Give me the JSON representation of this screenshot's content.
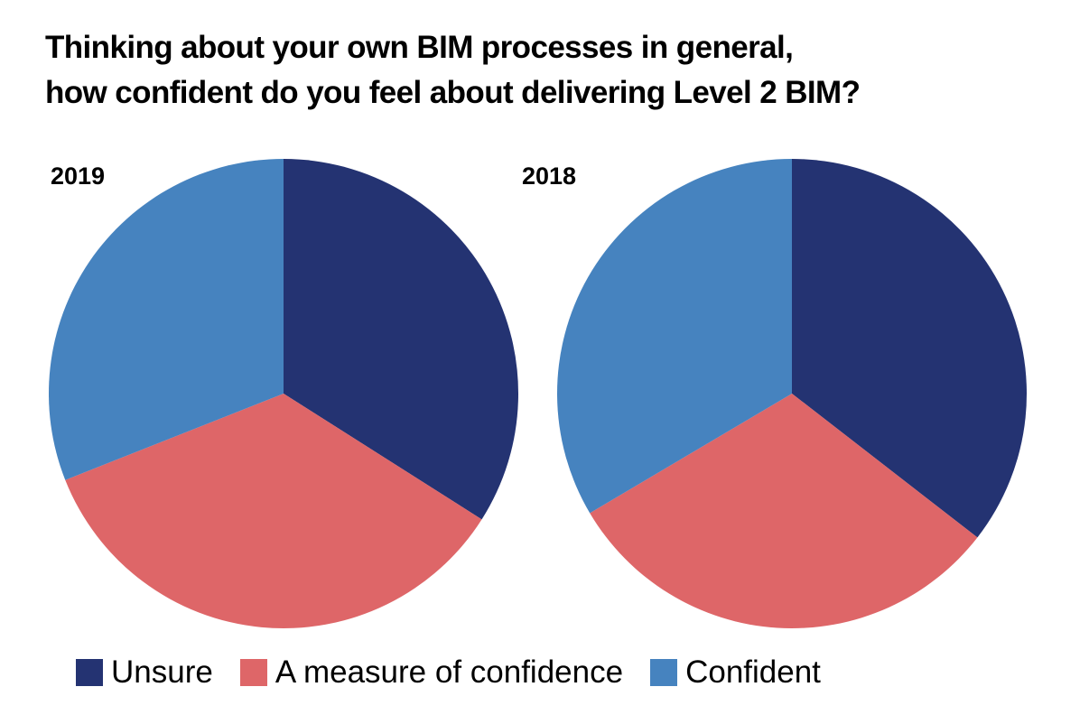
{
  "chart_data": [
    {
      "type": "pie",
      "title": "2019",
      "categories": [
        "Unsure",
        "A measure of confidence",
        "Confident"
      ],
      "values": [
        34,
        35,
        31
      ],
      "unit": "percent (estimated)",
      "start": "top, clockwise"
    },
    {
      "type": "pie",
      "title": "2018",
      "categories": [
        "Unsure",
        "A measure of confidence",
        "Confident"
      ],
      "values": [
        35.5,
        31,
        33.5
      ],
      "unit": "percent (estimated)",
      "start": "top, clockwise"
    }
  ],
  "title_lines": [
    "Thinking about your own BIM processes in general,",
    "how confident do you feel about delivering Level 2 BIM?"
  ],
  "legend": {
    "placement": "bottom",
    "items": [
      {
        "label": "Unsure",
        "color": "#243372"
      },
      {
        "label": "A measure of confidence",
        "color": "#de6668"
      },
      {
        "label": "Confident",
        "color": "#4683bf"
      }
    ]
  }
}
